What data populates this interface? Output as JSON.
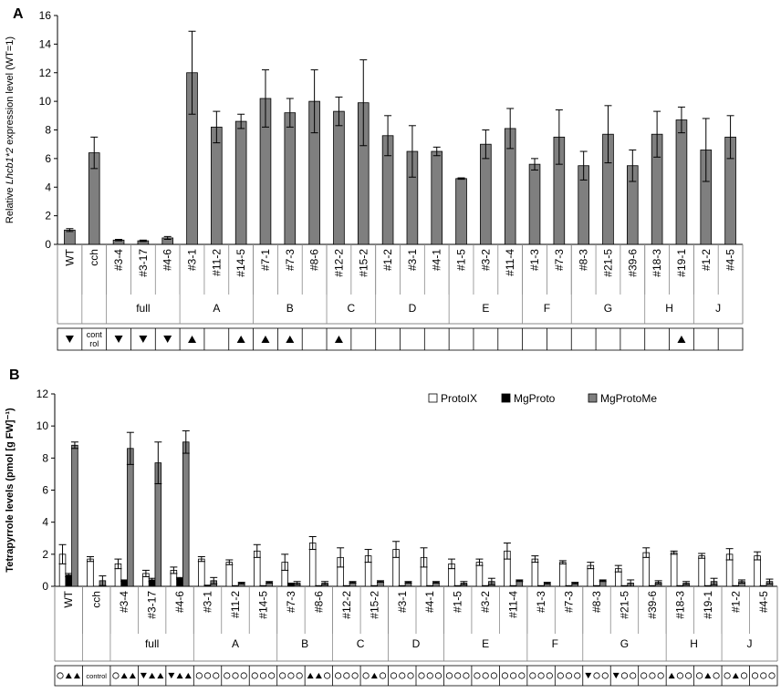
{
  "chart_data": [
    {
      "panel_label": "A",
      "type": "bar",
      "ylabel_prefix": "Relative ",
      "ylabel_italic": "Lhcb1*2",
      "ylabel_suffix": " expression level (WT=1)",
      "ylim": [
        0,
        16
      ],
      "yticks": [
        "0",
        "2",
        "4",
        "6",
        "8",
        "10",
        "12",
        "14",
        "16"
      ],
      "bar_color": "#7f7f7f",
      "categories": [
        "WT",
        "cch",
        "#3-4",
        "#3-17",
        "#4-6",
        "#3-1",
        "#11-2",
        "#14-5",
        "#7-1",
        "#7-3",
        "#8-6",
        "#12-2",
        "#15-2",
        "#1-2",
        "#3-1",
        "#4-1",
        "#1-5",
        "#3-2",
        "#11-4",
        "#1-3",
        "#7-3",
        "#8-3",
        "#21-5",
        "#39-6",
        "#18-3",
        "#19-1",
        "#1-2",
        "#4-5"
      ],
      "values": [
        1.0,
        6.4,
        0.3,
        0.25,
        0.45,
        12.0,
        8.2,
        8.6,
        10.2,
        9.2,
        10.0,
        9.3,
        9.9,
        7.6,
        6.5,
        6.5,
        4.6,
        7.0,
        8.1,
        5.6,
        7.5,
        5.5,
        7.7,
        5.5,
        7.7,
        8.7,
        6.6,
        7.5
      ],
      "errors": [
        0.1,
        1.1,
        0.05,
        0.05,
        0.1,
        2.9,
        1.1,
        0.5,
        2.0,
        1.0,
        2.2,
        1.0,
        3.0,
        1.4,
        1.8,
        0.3,
        0.05,
        1.0,
        1.4,
        0.4,
        1.9,
        1.0,
        2.0,
        1.1,
        1.6,
        0.9,
        2.2,
        1.5
      ],
      "groups": [
        {
          "label": "",
          "count": 1
        },
        {
          "label": "",
          "count": 1
        },
        {
          "label": "full",
          "count": 3
        },
        {
          "label": "A",
          "count": 3
        },
        {
          "label": "B",
          "count": 3
        },
        {
          "label": "C",
          "count": 2
        },
        {
          "label": "D",
          "count": 3
        },
        {
          "label": "E",
          "count": 3
        },
        {
          "label": "F",
          "count": 2
        },
        {
          "label": "G",
          "count": 3
        },
        {
          "label": "H",
          "count": 2
        },
        {
          "label": "J",
          "count": 2
        }
      ],
      "symbol_row": [
        "down",
        "control",
        "down",
        "down",
        "down",
        "up",
        "",
        "up",
        "up",
        "up",
        "",
        "up",
        "",
        "",
        "",
        "",
        "",
        "",
        "",
        "",
        "",
        "",
        "",
        "",
        "",
        "up",
        "",
        ""
      ],
      "control_text": "control"
    },
    {
      "panel_label": "B",
      "type": "bar",
      "ylabel": "Tetrapyrrole levels (pmol [g FW]⁻¹)",
      "ylim": [
        0,
        12
      ],
      "yticks": [
        "0",
        "2",
        "4",
        "6",
        "8",
        "10",
        "12"
      ],
      "legend_position": "top-right",
      "series": [
        {
          "name": "ProtoIX",
          "color": "#ffffff",
          "values": [
            2.0,
            1.7,
            1.4,
            0.8,
            1.0,
            1.7,
            1.5,
            2.2,
            1.5,
            2.7,
            1.8,
            1.9,
            2.3,
            1.8,
            1.4,
            1.5,
            2.2,
            1.7,
            1.5,
            1.3,
            1.1,
            2.1,
            2.1,
            1.9,
            2.0,
            1.9
          ],
          "errors": [
            0.6,
            0.15,
            0.3,
            0.2,
            0.2,
            0.15,
            0.15,
            0.4,
            0.5,
            0.4,
            0.6,
            0.4,
            0.5,
            0.6,
            0.3,
            0.2,
            0.5,
            0.2,
            0.1,
            0.2,
            0.2,
            0.3,
            0.1,
            0.15,
            0.35,
            0.25
          ]
        },
        {
          "name": "MgProto",
          "color": "#000000",
          "values": [
            0.7,
            0.0,
            0.35,
            0.4,
            0.5,
            0.05,
            0.03,
            0.03,
            0.15,
            0.03,
            0.03,
            0.03,
            0.03,
            0.03,
            0.03,
            0.03,
            0.03,
            0.03,
            0.03,
            0.03,
            0.03,
            0.03,
            0.03,
            0.03,
            0.03,
            0.03
          ],
          "errors": [
            0.1,
            0.0,
            0.05,
            0.1,
            0.05,
            0.02,
            0.01,
            0.01,
            0.05,
            0.01,
            0.01,
            0.01,
            0.01,
            0.01,
            0.01,
            0.01,
            0.01,
            0.01,
            0.01,
            0.01,
            0.01,
            0.01,
            0.01,
            0.01,
            0.01,
            0.01
          ]
        },
        {
          "name": "MgProtoMe",
          "color": "#7f7f7f",
          "values": [
            8.8,
            0.35,
            8.6,
            7.7,
            9.0,
            0.35,
            0.2,
            0.25,
            0.2,
            0.2,
            0.25,
            0.3,
            0.25,
            0.25,
            0.2,
            0.3,
            0.35,
            0.2,
            0.2,
            0.35,
            0.2,
            0.25,
            0.2,
            0.3,
            0.3,
            0.3
          ],
          "errors": [
            0.2,
            0.3,
            1.0,
            1.3,
            0.7,
            0.2,
            0.05,
            0.05,
            0.1,
            0.1,
            0.05,
            0.05,
            0.05,
            0.05,
            0.1,
            0.2,
            0.05,
            0.05,
            0.05,
            0.05,
            0.2,
            0.1,
            0.1,
            0.2,
            0.1,
            0.15
          ]
        }
      ],
      "categories": [
        "WT",
        "cch",
        "#3-4",
        "#3-17",
        "#4-6",
        "#3-1",
        "#11-2",
        "#14-5",
        "#7-3",
        "#8-6",
        "#12-2",
        "#15-2",
        "#3-1",
        "#4-1",
        "#1-5",
        "#3-2",
        "#11-4",
        "#1-3",
        "#7-3",
        "#8-3",
        "#21-5",
        "#39-6",
        "#18-3",
        "#19-1",
        "#1-2",
        "#4-5"
      ],
      "groups": [
        {
          "label": "",
          "count": 1
        },
        {
          "label": "",
          "count": 1
        },
        {
          "label": "full",
          "count": 3
        },
        {
          "label": "A",
          "count": 3
        },
        {
          "label": "B",
          "count": 2
        },
        {
          "label": "C",
          "count": 2
        },
        {
          "label": "D",
          "count": 2
        },
        {
          "label": "E",
          "count": 3
        },
        {
          "label": "F",
          "count": 2
        },
        {
          "label": "G",
          "count": 3
        },
        {
          "label": "H",
          "count": 2
        },
        {
          "label": "J",
          "count": 2
        }
      ],
      "symbol_row": [
        [
          "circle",
          "up",
          "up"
        ],
        [
          "control"
        ],
        [
          "circle",
          "up",
          "up"
        ],
        [
          "down",
          "up",
          "up"
        ],
        [
          "down",
          "up",
          "up"
        ],
        [
          "circle",
          "circle",
          "circle"
        ],
        [
          "circle",
          "circle",
          "circle"
        ],
        [
          "circle",
          "circle",
          "circle"
        ],
        [
          "circle",
          "circle",
          "circle"
        ],
        [
          "up",
          "up",
          "circle"
        ],
        [
          "circle",
          "circle",
          "circle"
        ],
        [
          "circle",
          "up",
          "circle"
        ],
        [
          "circle",
          "circle",
          "circle"
        ],
        [
          "circle",
          "circle",
          "circle"
        ],
        [
          "circle",
          "circle",
          "circle"
        ],
        [
          "circle",
          "circle",
          "circle"
        ],
        [
          "circle",
          "circle",
          "circle"
        ],
        [
          "circle",
          "circle",
          "circle"
        ],
        [
          "circle",
          "circle",
          "circle"
        ],
        [
          "down",
          "circle",
          "circle"
        ],
        [
          "down",
          "circle",
          "circle"
        ],
        [
          "circle",
          "circle",
          "circle"
        ],
        [
          "up",
          "circle",
          "circle"
        ],
        [
          "circle",
          "up",
          "circle"
        ],
        [
          "circle",
          "up",
          "circle"
        ],
        [
          "circle",
          "circle",
          "circle"
        ]
      ],
      "control_text": "control"
    }
  ]
}
